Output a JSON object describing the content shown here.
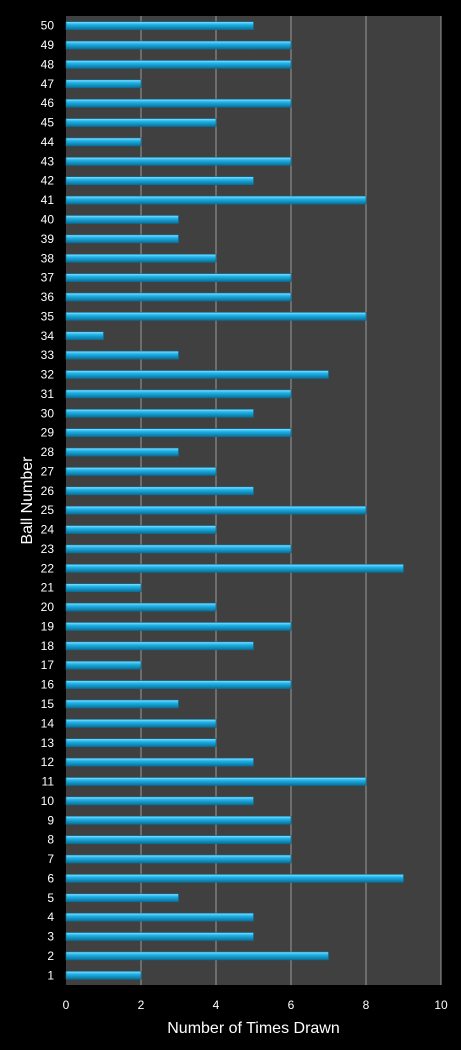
{
  "chart_data": {
    "type": "bar",
    "orientation": "horizontal",
    "xlabel": "Number of Times Drawn",
    "ylabel": "Ball Number",
    "xlim": [
      0,
      10
    ],
    "x_ticks": [
      0,
      2,
      4,
      6,
      8,
      10
    ],
    "grid": true,
    "categories": [
      "1",
      "2",
      "3",
      "4",
      "5",
      "6",
      "7",
      "8",
      "9",
      "10",
      "11",
      "12",
      "13",
      "14",
      "15",
      "16",
      "17",
      "18",
      "19",
      "20",
      "21",
      "22",
      "23",
      "24",
      "25",
      "26",
      "27",
      "28",
      "29",
      "30",
      "31",
      "32",
      "33",
      "34",
      "35",
      "36",
      "37",
      "38",
      "39",
      "40",
      "41",
      "42",
      "43",
      "44",
      "45",
      "46",
      "47",
      "48",
      "49",
      "50"
    ],
    "values": [
      2,
      7,
      5,
      5,
      3,
      9,
      6,
      6,
      6,
      5,
      8,
      5,
      4,
      4,
      3,
      6,
      2,
      5,
      6,
      4,
      2,
      9,
      6,
      4,
      8,
      5,
      4,
      3,
      6,
      5,
      6,
      7,
      3,
      1,
      8,
      6,
      6,
      4,
      3,
      3,
      8,
      5,
      6,
      2,
      4,
      6,
      2,
      6,
      6,
      5
    ]
  },
  "colors": {
    "background": "#000000",
    "plot_area": "#404040",
    "gridline": "#9a9a9a",
    "bar": "#1fb4ea",
    "bar_highlight": "#8fe2ff",
    "bar_shadow": "#0a6f97",
    "text": "#ffffff"
  }
}
